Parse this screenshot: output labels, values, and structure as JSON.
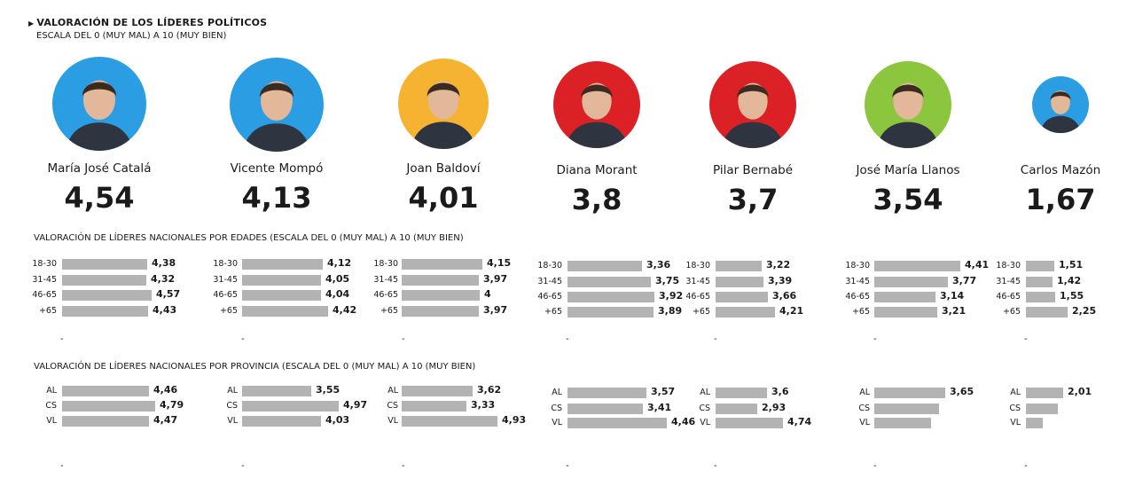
{
  "header": {
    "title": "VALORACIÓN DE LOS LÍDERES  POLÍTICOS",
    "subtitle": "ESCALA DEL 0 (MUY MAL)  A 10 (MUY BIEN)"
  },
  "sections": {
    "ages_title": "VALORACIÓN DE LÍDERES NACIONALES POR EDADES (ESCALA DEL 0 (MUY MAL)  A 10 (MUY BIEN)",
    "province_title": "VALORACIÓN DE LÍDERES NACIONALES POR PROVINCIA (ESCALA DEL 0 (MUY MAL)  A 10 (MUY BIEN)",
    "footer_mark": "-"
  },
  "chart_data": [
    {
      "type": "bar",
      "chart": "overall",
      "categories": [
        "María José Catalá",
        "Vicente Mompó",
        "Joan Baldoví",
        "Diana Morant",
        "Pilar Bernabé",
        "José María Llanos",
        "Carlos Mazón"
      ],
      "values": [
        4.54,
        4.13,
        4.01,
        3.8,
        3.7,
        3.54,
        1.67
      ],
      "labels": [
        "4,54",
        "4,13",
        "4,01",
        "3,8",
        "3,7",
        "3,54",
        "1,67"
      ]
    },
    {
      "type": "bar",
      "chart": "by_age",
      "categories": [
        "18-30",
        "31-45",
        "46-65",
        "+65"
      ],
      "series": [
        {
          "name": "María José Catalá",
          "values": [
            4.38,
            4.32,
            4.57,
            4.43
          ],
          "labels": [
            "4,38",
            "4,32",
            "4,57",
            "4,43"
          ]
        },
        {
          "name": "Vicente Mompó",
          "values": [
            4.12,
            4.05,
            4.04,
            4.42
          ],
          "labels": [
            "4,12",
            "4,05",
            "4,04",
            "4,42"
          ]
        },
        {
          "name": "Joan Baldoví",
          "values": [
            4.15,
            3.97,
            4,
            3.97
          ],
          "labels": [
            "4,15",
            "3,97",
            "4",
            "3,97"
          ]
        },
        {
          "name": "Diana Morant",
          "values": [
            3.36,
            3.75,
            3.92,
            3.89
          ],
          "labels": [
            "3,36",
            "3,75",
            "3,92",
            "3,89"
          ]
        },
        {
          "name": "Pilar Bernabé",
          "values": [
            3.22,
            3.39,
            3.66,
            4.21
          ],
          "labels": [
            "3,22",
            "3,39",
            "3,66",
            "4,21"
          ]
        },
        {
          "name": "José María Llanos",
          "values": [
            4.41,
            3.77,
            3.14,
            3.21
          ],
          "labels": [
            "4,41",
            "3,77",
            "3,14",
            "3,21"
          ]
        },
        {
          "name": "Carlos Mazón",
          "values": [
            1.51,
            1.42,
            1.55,
            2.25
          ],
          "labels": [
            "1,51",
            "1,42",
            "1,55",
            "2,25"
          ]
        }
      ]
    },
    {
      "type": "bar",
      "chart": "by_province",
      "categories": [
        "AL",
        "CS",
        "VL"
      ],
      "series": [
        {
          "name": "María José Catalá",
          "values": [
            4.46,
            4.79,
            4.47
          ],
          "labels": [
            "4,46",
            "4,79",
            "4,47"
          ]
        },
        {
          "name": "Vicente Mompó",
          "values": [
            3.55,
            4.97,
            4.03
          ],
          "labels": [
            "3,55",
            "4,97",
            "4,03"
          ]
        },
        {
          "name": "Joan Baldoví",
          "values": [
            3.62,
            3.33,
            4.93
          ],
          "labels": [
            "3,62",
            "3,33",
            "4,93"
          ]
        },
        {
          "name": "Diana Morant",
          "values": [
            3.57,
            3.41,
            4.46
          ],
          "labels": [
            "3,57",
            "3,41",
            "4,46"
          ]
        },
        {
          "name": "Pilar Bernabé",
          "values": [
            3.6,
            2.93,
            4.74
          ],
          "labels": [
            "3,6",
            "2,93",
            "4,74"
          ]
        },
        {
          "name": "José María Llanos",
          "values": [
            3.65,
            3.3,
            2.9
          ],
          "labels": [
            "3,65",
            "",
            ""
          ]
        },
        {
          "name": "Carlos Mazón",
          "values": [
            2.01,
            1.7,
            0.9
          ],
          "labels": [
            "2,01",
            "",
            ""
          ]
        }
      ]
    }
  ],
  "colors": {
    "bar": "#b3b3b3",
    "avatars": [
      "#2a9de3",
      "#2a9de3",
      "#f6b331",
      "#db2125",
      "#db2125",
      "#8cc63e",
      "#2a9de3"
    ]
  }
}
